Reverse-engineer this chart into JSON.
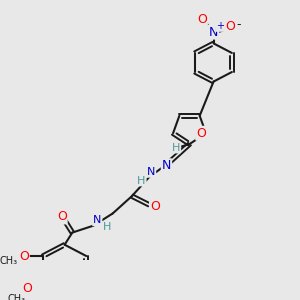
{
  "bg_color": "#e8e8e8",
  "bond_color": "#1a1a1a",
  "atom_colors": {
    "O": "#ff0000",
    "N": "#0000cc",
    "C": "#1a1a1a",
    "H": "#4a9a9a"
  },
  "figsize": [
    3.0,
    3.0
  ],
  "dpi": 100,
  "no2_N": "#0000cc",
  "no2_O": "#ff0000"
}
